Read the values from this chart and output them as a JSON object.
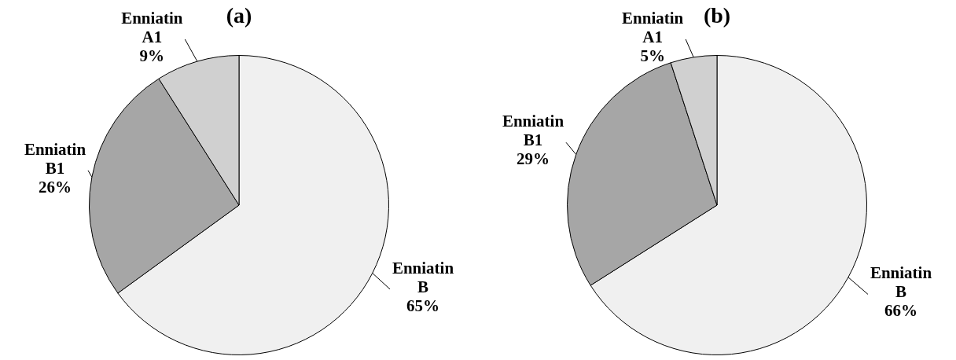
{
  "chart_data": [
    {
      "type": "pie",
      "title": "(a)",
      "categories": [
        "Enniatin B",
        "Enniatin B1",
        "Enniatin A1"
      ],
      "values": [
        65,
        26,
        9
      ],
      "value_labels": [
        "65%",
        "26%",
        "9%"
      ],
      "colors": [
        "#f0f0f0",
        "#a6a6a6",
        "#d0d0d0"
      ]
    },
    {
      "type": "pie",
      "title": "(b)",
      "categories": [
        "Enniatin B",
        "Enniatin B1",
        "Enniatin A1"
      ],
      "values": [
        66,
        29,
        5
      ],
      "value_labels": [
        "66%",
        "29%",
        "5%"
      ],
      "colors": [
        "#f0f0f0",
        "#a6a6a6",
        "#d0d0d0"
      ]
    }
  ]
}
